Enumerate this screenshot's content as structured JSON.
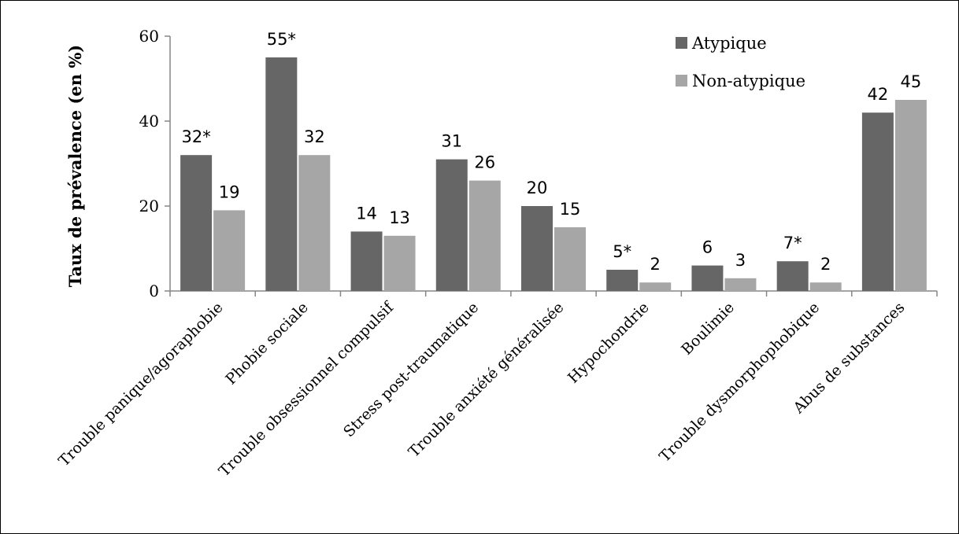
{
  "chart_data": {
    "type": "bar",
    "ylabel": "Taux de prévalence (en %)",
    "xlabel": "",
    "ylim": [
      0,
      60
    ],
    "yticks": [
      0,
      20,
      40,
      60
    ],
    "grid": false,
    "legend_position": "top-right",
    "categories": [
      "Trouble panique/agoraphobie",
      "Phobie sociale",
      "Trouble obsessionnel compulsif",
      "Stress post-traumatique",
      "Trouble anxiété généralisée",
      "Hypochondrie",
      "Boulimie",
      "Trouble dysmorphophobique",
      "Abus de substances"
    ],
    "series": [
      {
        "name": "Atypique",
        "color": "#666666",
        "values": [
          32,
          55,
          14,
          31,
          20,
          5,
          6,
          7,
          42
        ],
        "labels": [
          "32*",
          "55*",
          "14",
          "31",
          "20",
          "5*",
          "6",
          "7*",
          "42"
        ]
      },
      {
        "name": "Non-atypique",
        "color": "#a6a6a6",
        "values": [
          19,
          32,
          13,
          26,
          15,
          2,
          3,
          2,
          45
        ],
        "labels": [
          "19",
          "32",
          "13",
          "26",
          "15",
          "2",
          "3",
          "2",
          "45"
        ]
      }
    ]
  }
}
